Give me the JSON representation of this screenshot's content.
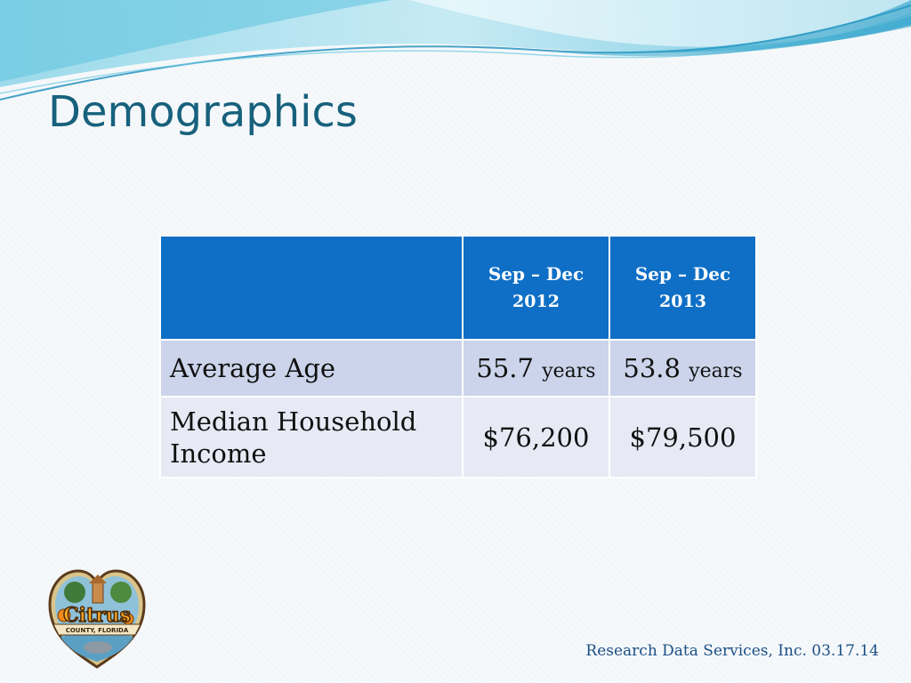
{
  "slide": {
    "title": "Demographics",
    "footer": "Research Data Services, Inc.  03.17.14"
  },
  "table": {
    "header": [
      {
        "line1": "Sep – Dec",
        "line2": "2012"
      },
      {
        "line1": "Sep – Dec",
        "line2": "2013"
      }
    ],
    "rows": [
      {
        "label": "Average Age",
        "values": [
          {
            "number": "55.7",
            "unit": "years"
          },
          {
            "number": "53.8",
            "unit": "years"
          }
        ]
      },
      {
        "label": "Median Household Income",
        "values": [
          {
            "number": "$76,200",
            "unit": ""
          },
          {
            "number": "$79,500",
            "unit": ""
          }
        ]
      }
    ]
  },
  "logo": {
    "icon": "citrus-county-florida-logo",
    "text": "Citrus",
    "subtext": "COUNTY, FLORIDA"
  },
  "colors": {
    "title": "#17617d",
    "header_fill": "#0f6fc6",
    "row_a_fill": "#cbd4ea",
    "row_b_fill": "#e7eaf5",
    "footer_text": "#1a4f86"
  }
}
